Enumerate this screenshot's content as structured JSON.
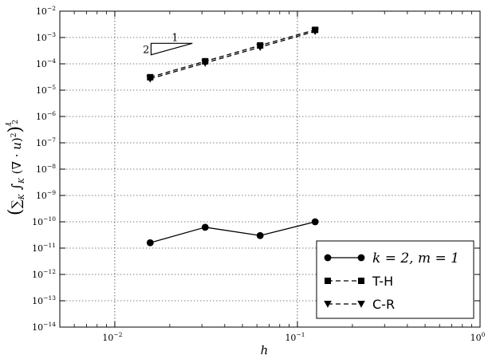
{
  "chart_data": {
    "type": "line",
    "xlabel": "h",
    "ylabel": "(∑K ∫K (∇·u)²)^(1/2)",
    "xscale": "log",
    "yscale": "log",
    "xlim": [
      0.005,
      1
    ],
    "ylim": [
      1e-14,
      0.01
    ],
    "grid": true,
    "legend_position": "bottom-right",
    "x_ticks": [
      {
        "value": 0.01,
        "base": "10",
        "exp": "−2"
      },
      {
        "value": 0.1,
        "base": "10",
        "exp": "−1"
      },
      {
        "value": 1,
        "base": "10",
        "exp": "0"
      }
    ],
    "y_ticks": [
      {
        "value": 1e-14,
        "base": "10",
        "exp": "−14"
      },
      {
        "value": 1e-13,
        "base": "10",
        "exp": "−13"
      },
      {
        "value": 1e-12,
        "base": "10",
        "exp": "−12"
      },
      {
        "value": 1e-11,
        "base": "10",
        "exp": "−11"
      },
      {
        "value": 1e-10,
        "base": "10",
        "exp": "−10"
      },
      {
        "value": 1e-09,
        "base": "10",
        "exp": "−9"
      },
      {
        "value": 1e-08,
        "base": "10",
        "exp": "−8"
      },
      {
        "value": 1e-07,
        "base": "10",
        "exp": "−7"
      },
      {
        "value": 1e-06,
        "base": "10",
        "exp": "−6"
      },
      {
        "value": 1e-05,
        "base": "10",
        "exp": "−5"
      },
      {
        "value": 0.0001,
        "base": "10",
        "exp": "−4"
      },
      {
        "value": 0.001,
        "base": "10",
        "exp": "−3"
      },
      {
        "value": 0.01,
        "base": "10",
        "exp": "−2"
      }
    ],
    "series": [
      {
        "name": "k = 2, m = 1",
        "marker": "circle",
        "linestyle": "solid",
        "x": [
          0.015625,
          0.03125,
          0.0625,
          0.125
        ],
        "y": [
          1.6e-11,
          6.2e-11,
          3e-11,
          1e-10
        ]
      },
      {
        "name": "T-H",
        "marker": "square",
        "linestyle": "dashed",
        "x": [
          0.015625,
          0.03125,
          0.0625,
          0.125
        ],
        "y": [
          3.1e-05,
          0.000125,
          0.0005,
          0.00195
        ]
      },
      {
        "name": "C-R",
        "marker": "triangle-down",
        "linestyle": "dashed",
        "x": [
          0.015625,
          0.03125,
          0.0625,
          0.125
        ],
        "y": [
          2.7e-05,
          0.000108,
          0.00043,
          0.00172
        ]
      }
    ],
    "slope_triangle": {
      "run_label": "1",
      "rise_label": "2"
    }
  }
}
